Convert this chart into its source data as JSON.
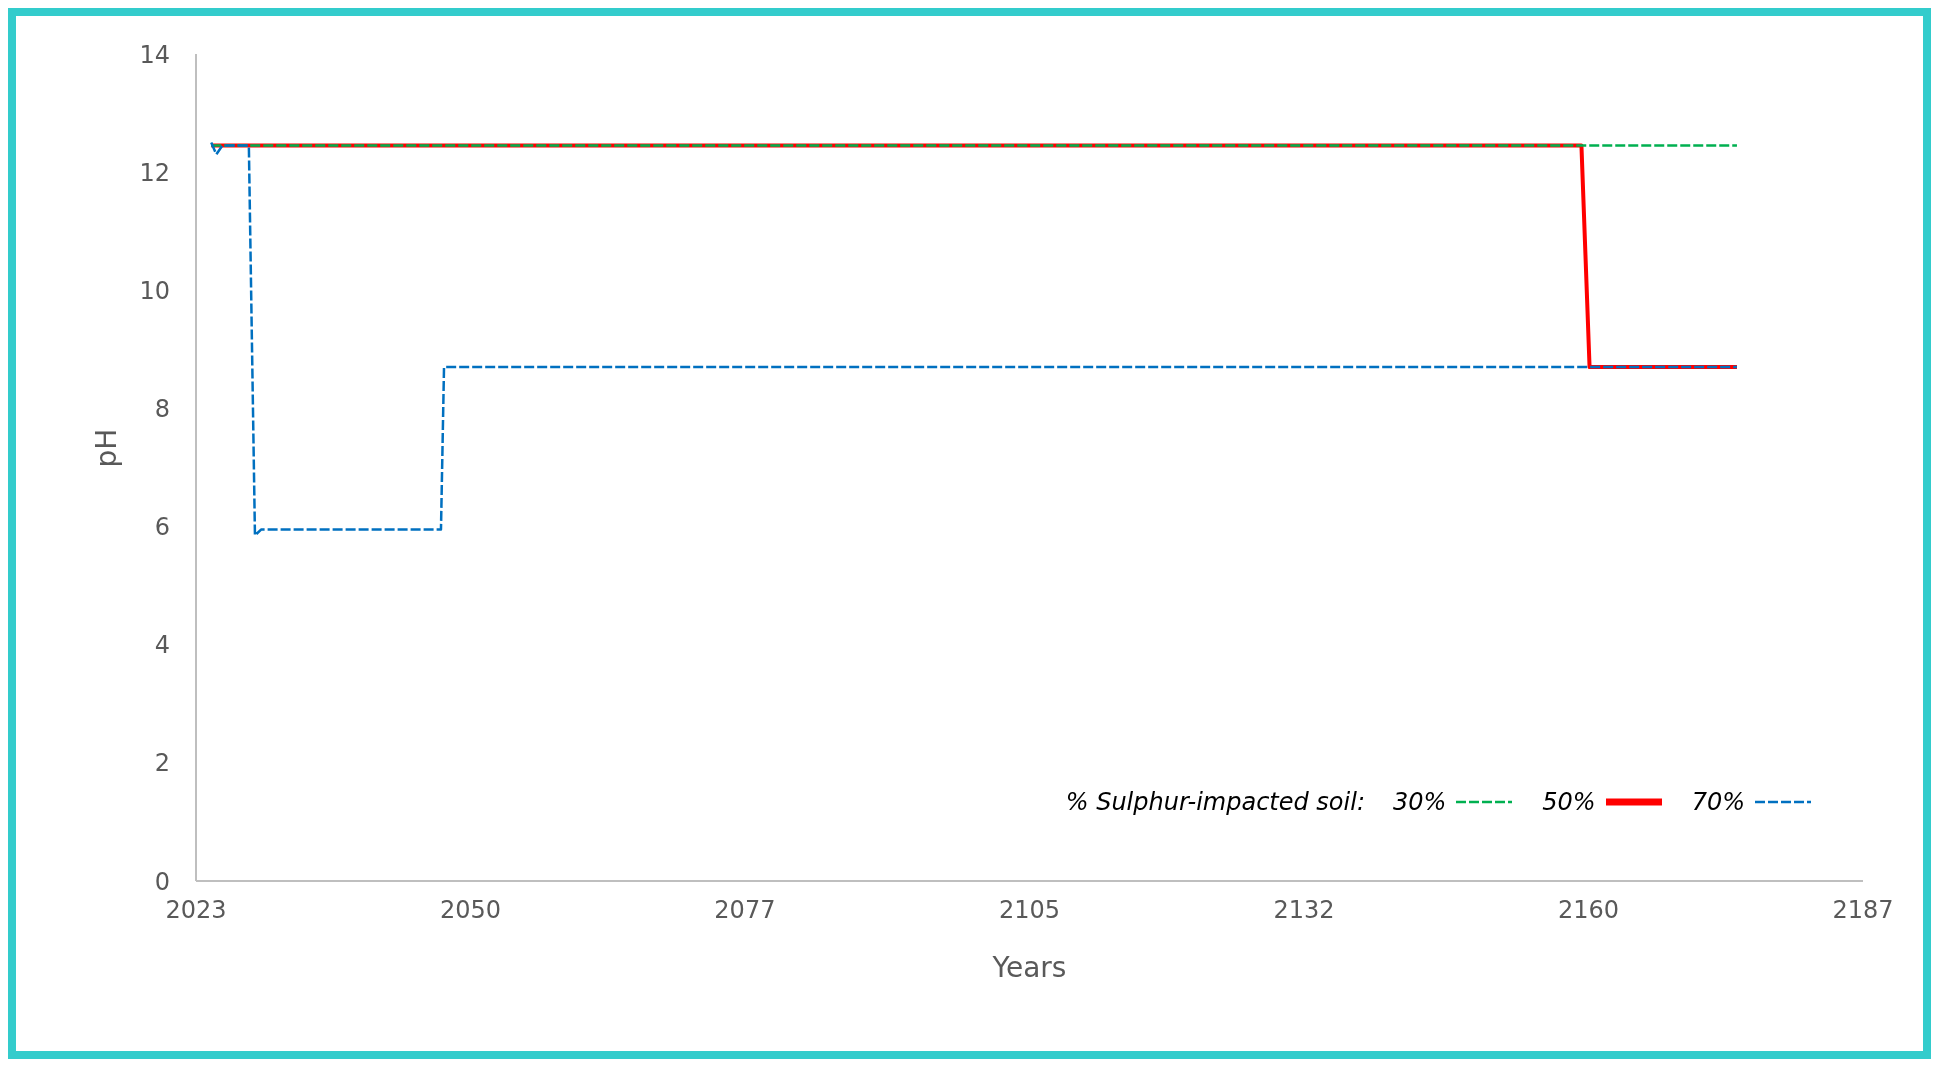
{
  "chart_data": {
    "type": "line",
    "xlabel": "Years",
    "ylabel": "pH",
    "legend_title": "% Sulphur-impacted soil:",
    "legend": "bottom right",
    "grid": false,
    "xlim": [
      2023,
      2187
    ],
    "xticks": [
      2023,
      2050,
      2077,
      2105,
      2132,
      2160,
      2187
    ],
    "ylim": [
      0,
      14
    ],
    "yticks": [
      0,
      2,
      4,
      6,
      8,
      10,
      12,
      14
    ],
    "series": [
      {
        "name": "30%",
        "color": "#00b050",
        "line_style": "dashed",
        "x": [
          2024.5,
          2174.6
        ],
        "values": [
          12.45,
          12.45
        ]
      },
      {
        "name": "50%",
        "color": "#ff0000",
        "line_style": "solid",
        "x": [
          2024.5,
          2159.3,
          2160.1,
          2174.6
        ],
        "values": [
          12.45,
          12.45,
          8.7,
          8.7
        ]
      },
      {
        "name": "70%",
        "color": "#0070c0",
        "line_style": "dashed",
        "x": [
          2024.5,
          2025.0,
          2025.6,
          2028.2,
          2028.8,
          2029.4,
          2047.1,
          2047.4,
          2174.6
        ],
        "values": [
          12.5,
          12.3,
          12.45,
          12.45,
          5.85,
          5.95,
          5.95,
          8.7,
          8.7
        ]
      }
    ]
  }
}
